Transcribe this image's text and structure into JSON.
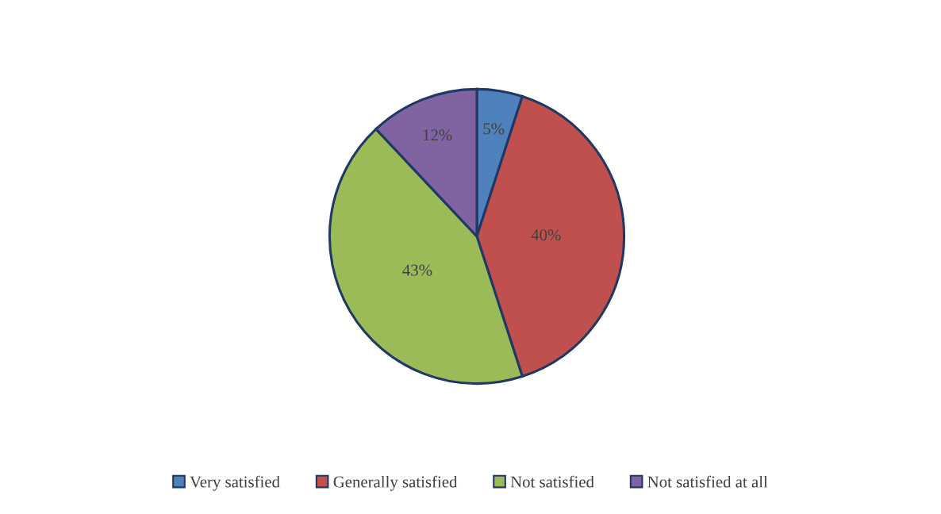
{
  "chart_data": {
    "type": "pie",
    "categories": [
      "Very satisfied",
      "Generally satisfied",
      "Not satisfied",
      "Not satisfied at all"
    ],
    "values": [
      5,
      40,
      43,
      12
    ],
    "colors": [
      "#4f81bd",
      "#c0504d",
      "#9bbb59",
      "#8064a2"
    ],
    "value_labels": [
      "5%",
      "40%",
      "43%",
      "12%"
    ],
    "legend": "bottom"
  }
}
